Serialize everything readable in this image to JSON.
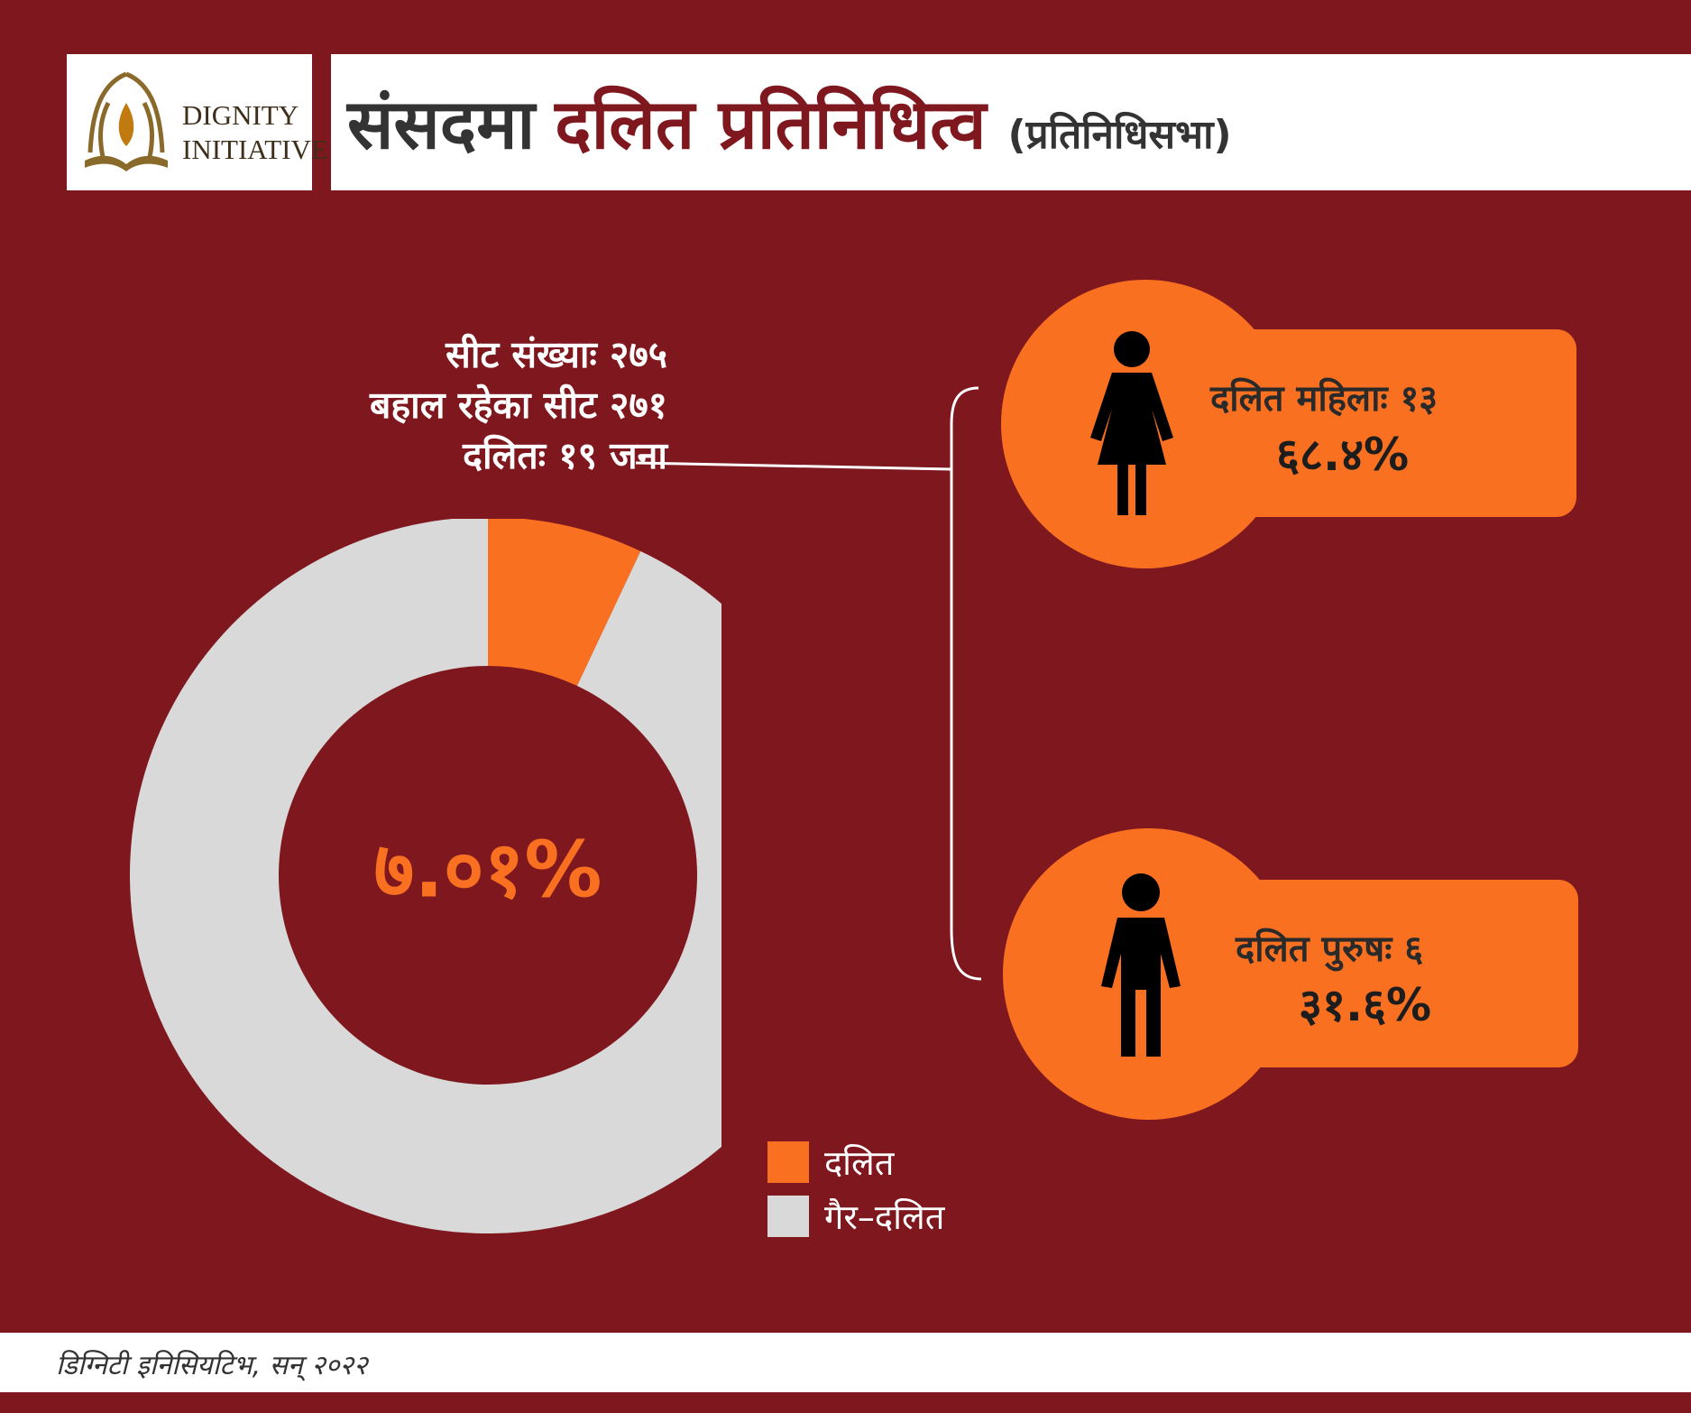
{
  "logo": {
    "line1": "DIGNITY",
    "line2": "INITIATIVE"
  },
  "title": {
    "part1": "संसदमा",
    "part2": "दलित प्रतिनिधित्व",
    "part3": "(प्रतिनिधिसभा)"
  },
  "seat_info": {
    "line1": "सीट संख्याः २७५",
    "line2": "बहाल रहेका सीट २७१",
    "line3": "दलितः १९ जना"
  },
  "female": {
    "label": "दलित महिलाः १३",
    "value": "६८.४%"
  },
  "male": {
    "label": "दलित पुरुषः ६",
    "value": "३१.६%"
  },
  "legend": {
    "dalit": "दलित",
    "non_dalit": "गैर–दलित"
  },
  "footer": "डिग्निटी इनिसियटिभ, सन् २०२२",
  "colors": {
    "background": "#7f181e",
    "dalit": "#fa7021",
    "non_dalit": "#d9d9d9",
    "white": "#ffffff"
  },
  "chart_data": {
    "type": "pie",
    "variant": "donut",
    "center_label": "७.०१%",
    "categories": [
      "दलित",
      "गैर–दलित"
    ],
    "values": [
      7.01,
      92.99
    ],
    "colors": [
      "#fa7021",
      "#d9d9d9"
    ],
    "start_angle_deg": 0,
    "legend_position": "bottom-right"
  }
}
